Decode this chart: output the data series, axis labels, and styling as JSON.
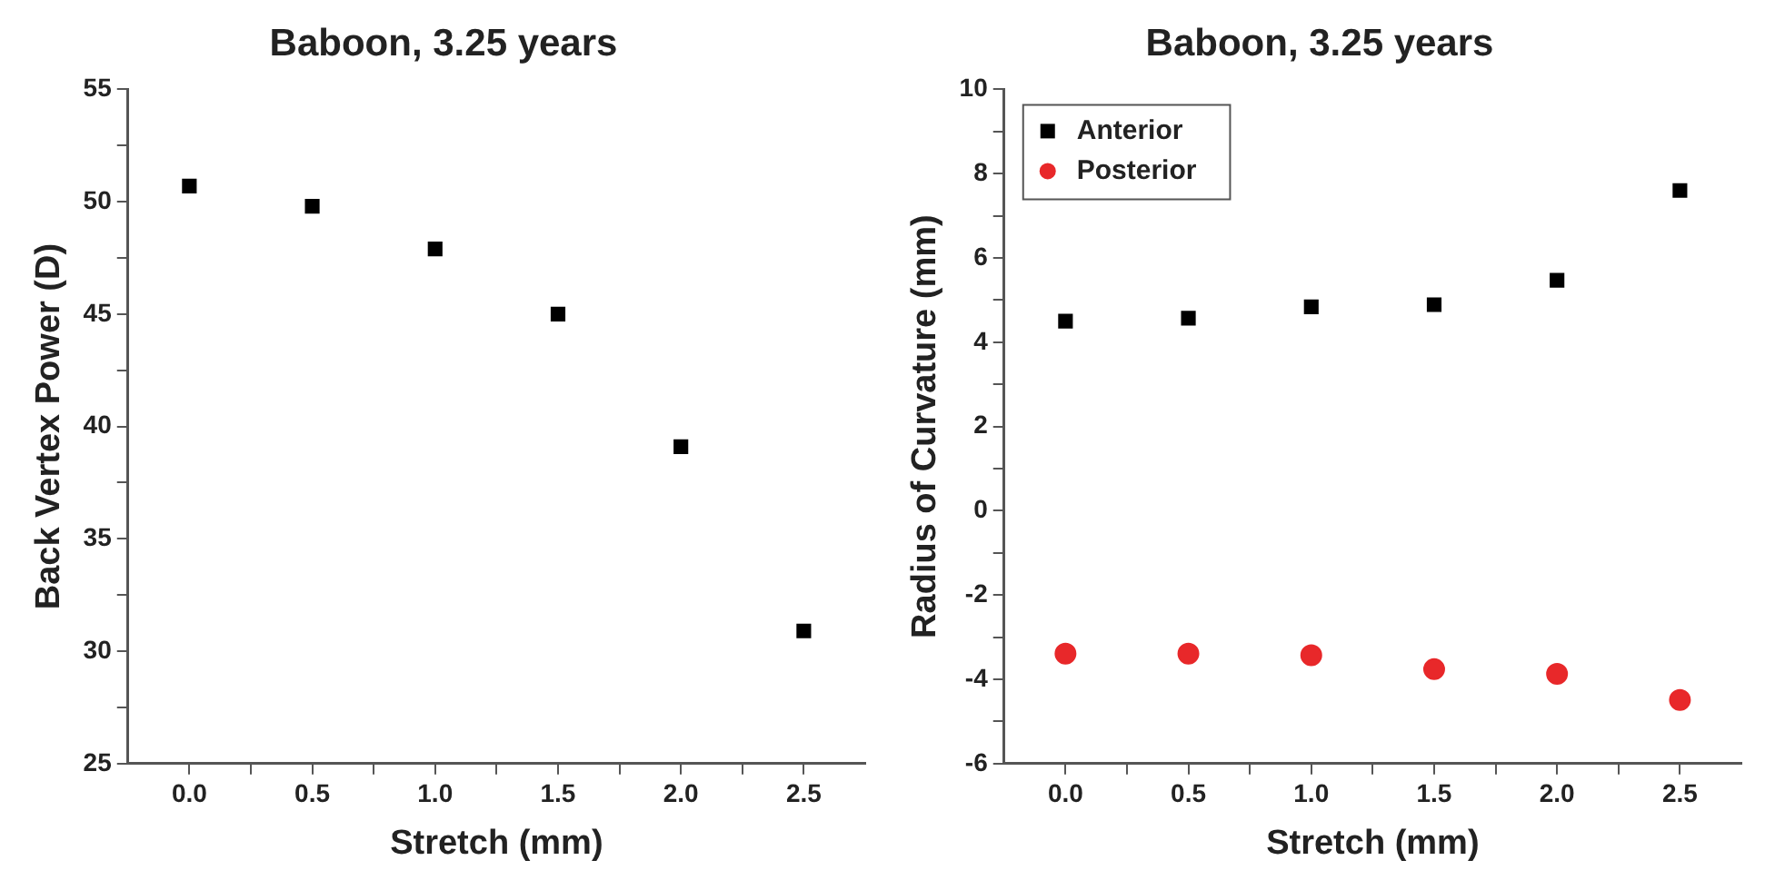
{
  "chart_data": [
    {
      "type": "scatter",
      "title": "Baboon, 3.25 years",
      "xlabel": "Stretch (mm)",
      "ylabel": "Back Vertex Power (D)",
      "x": [
        0,
        0.5,
        1.0,
        1.5,
        2.0,
        2.5
      ],
      "series": [
        {
          "color": "#000000",
          "marker": "square",
          "values": [
            50.7,
            49.8,
            47.9,
            45.0,
            39.1,
            30.9
          ]
        }
      ],
      "xlim": [
        -0.25,
        2.75
      ],
      "xticks": [
        {
          "value": 0,
          "label": "0.0"
        },
        {
          "value": 0.25,
          "label": null
        },
        {
          "value": 0.5,
          "label": "0.5"
        },
        {
          "value": 0.75,
          "label": null
        },
        {
          "value": 1,
          "label": "1.0"
        },
        {
          "value": 1.25,
          "label": null
        },
        {
          "value": 1.5,
          "label": "1.5"
        },
        {
          "value": 1.75,
          "label": null
        },
        {
          "value": 2,
          "label": "2.0"
        },
        {
          "value": 2.25,
          "label": null
        },
        {
          "value": 2.5,
          "label": "2.5"
        }
      ],
      "ylim": [
        25,
        55
      ],
      "yticks": [
        25,
        {
          "value": 27.5,
          "label": null
        },
        30,
        {
          "value": 32.5,
          "label": null
        },
        35,
        {
          "value": 37.5,
          "label": null
        },
        40,
        {
          "value": 42.5,
          "label": null
        },
        45,
        {
          "value": 47.5,
          "label": null
        },
        50,
        {
          "value": 52.5,
          "label": null
        },
        55
      ],
      "grid": false,
      "legend": false
    },
    {
      "type": "scatter",
      "title": "Baboon, 3.25 years",
      "xlabel": "Stretch (mm)",
      "ylabel": "Radius of Curvature (mm)",
      "x": [
        0,
        0.5,
        1.0,
        1.5,
        2.0,
        2.5
      ],
      "series": [
        {
          "name": "Anterior",
          "color": "#000000",
          "marker": "square",
          "values": [
            4.5,
            4.57,
            4.84,
            4.89,
            5.47,
            7.6
          ]
        },
        {
          "name": "Posterior",
          "color": "#e8282a",
          "marker": "circle",
          "values": [
            -3.39,
            -3.39,
            -3.43,
            -3.76,
            -3.87,
            -4.49
          ]
        }
      ],
      "xlim": [
        -0.25,
        2.75
      ],
      "xticks": [
        {
          "value": 0,
          "label": "0.0"
        },
        {
          "value": 0.25,
          "label": null
        },
        {
          "value": 0.5,
          "label": "0.5"
        },
        {
          "value": 0.75,
          "label": null
        },
        {
          "value": 1,
          "label": "1.0"
        },
        {
          "value": 1.25,
          "label": null
        },
        {
          "value": 1.5,
          "label": "1.5"
        },
        {
          "value": 1.75,
          "label": null
        },
        {
          "value": 2,
          "label": "2.0"
        },
        {
          "value": 2.25,
          "label": null
        },
        {
          "value": 2.5,
          "label": "2.5"
        }
      ],
      "ylim": [
        -6,
        10
      ],
      "yticks": [
        -6,
        {
          "value": -5,
          "label": null
        },
        -4,
        {
          "value": -3,
          "label": null
        },
        -2,
        {
          "value": -1,
          "label": null
        },
        0,
        {
          "value": 1,
          "label": null
        },
        2,
        {
          "value": 3,
          "label": null
        },
        4,
        {
          "value": 5,
          "label": null
        },
        6,
        {
          "value": 7,
          "label": null
        },
        8,
        {
          "value": 9,
          "label": null
        },
        10
      ],
      "grid": false,
      "legend": "top left"
    }
  ]
}
